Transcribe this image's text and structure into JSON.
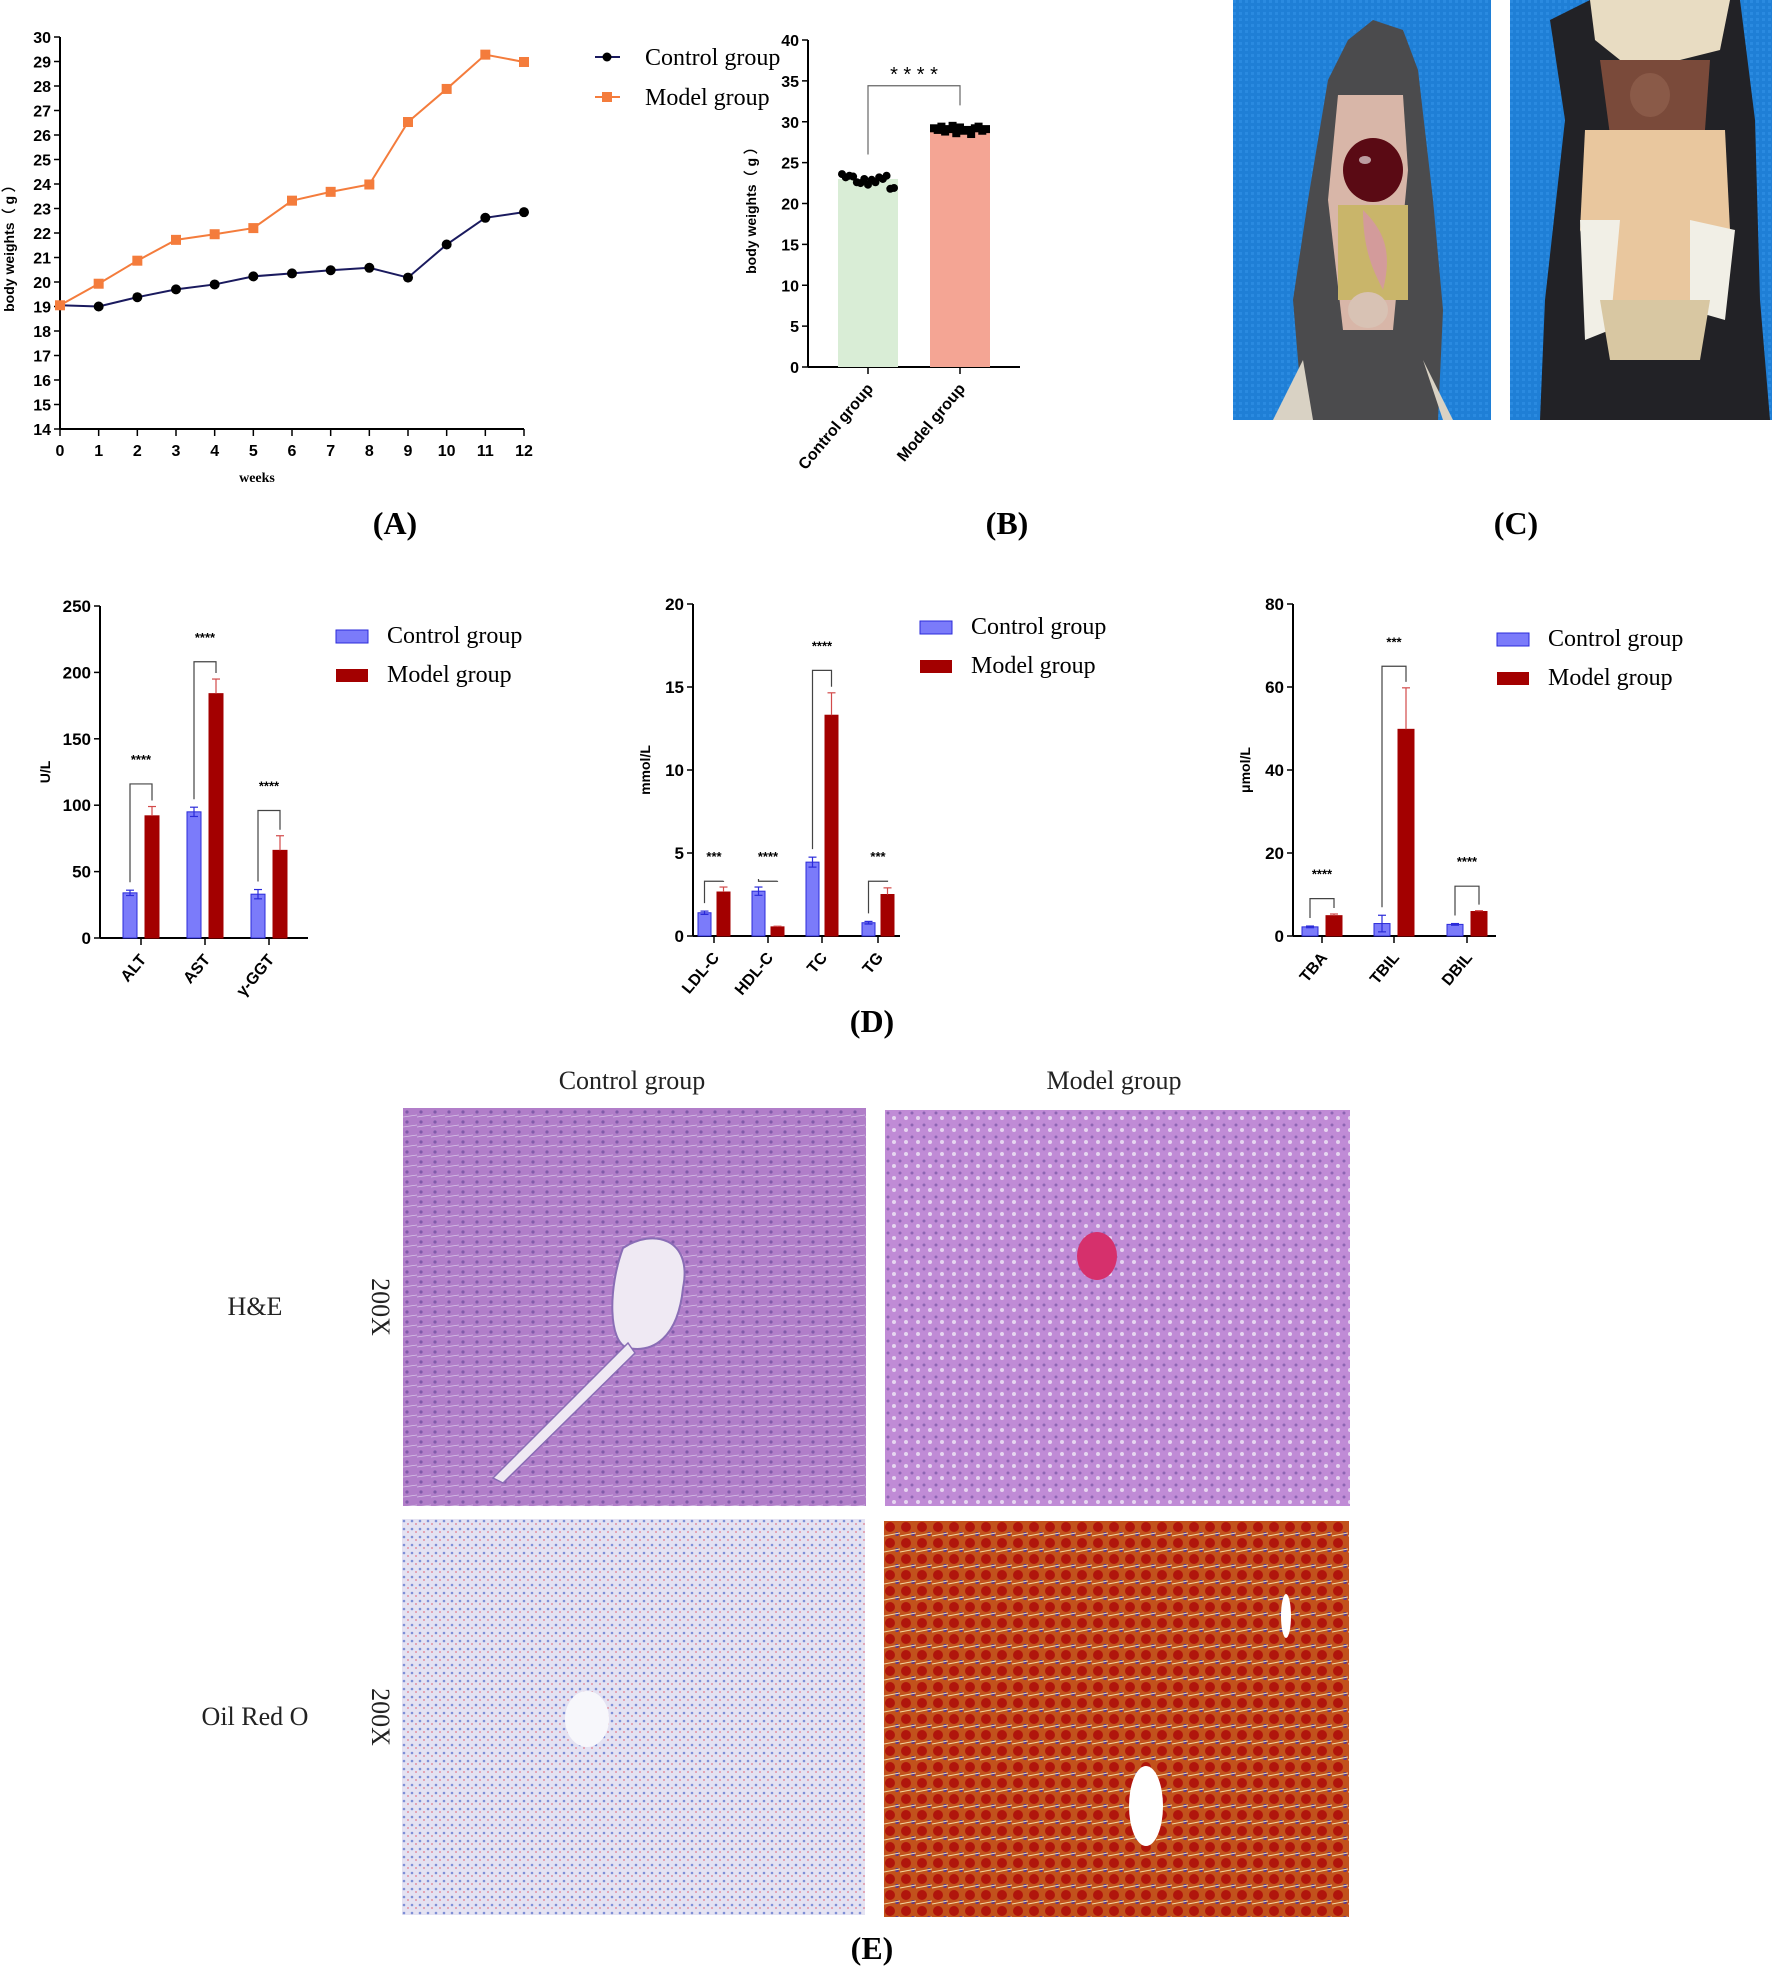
{
  "figure": {
    "panel_labels": {
      "A": "(A)",
      "B": "(B)",
      "C": "(C)",
      "D": "(D)",
      "E": "(E)"
    }
  },
  "legend": {
    "control": "Control group",
    "model": "Model group"
  },
  "colors": {
    "control_line": "#1a1a5e",
    "model_line": "#f47c3c",
    "control_bar_B": "#d9edd6",
    "model_bar_B": "#f4a594",
    "control_bar_D": "#7b7bfa",
    "control_bar_D_edge": "#2b2bd9",
    "model_bar_D": "#a30000"
  },
  "panel_E": {
    "col_headers": [
      "Control group",
      "Model group"
    ],
    "rows": [
      {
        "stain": "H&E",
        "magnification": "200X"
      },
      {
        "stain": "Oil Red O",
        "magnification": "200X"
      }
    ]
  },
  "chart_data": [
    {
      "id": "A",
      "type": "line",
      "title": "",
      "xlabel": "weeks",
      "ylabel": "body weights（  g  ）",
      "x": [
        0,
        1,
        2,
        3,
        4,
        5,
        6,
        7,
        8,
        9,
        10,
        11,
        12
      ],
      "xticks": [
        "0",
        "1",
        "2",
        "3",
        "4",
        "5",
        "6",
        "7",
        "8",
        "9",
        "10",
        "11",
        "12"
      ],
      "yticks": [
        "14",
        "15",
        "16",
        "17",
        "18",
        "19",
        "20",
        "21",
        "22",
        "23",
        "24",
        "25",
        "26",
        "27",
        "28",
        "29",
        "30"
      ],
      "ylim": [
        14,
        30
      ],
      "grid": false,
      "legend_position": "right",
      "series": [
        {
          "name": "Control group",
          "marker": "circle",
          "values": [
            19.05,
            19.0,
            19.38,
            19.7,
            19.9,
            20.23,
            20.35,
            20.48,
            20.58,
            20.18,
            21.53,
            22.62,
            22.85
          ]
        },
        {
          "name": "Model group",
          "marker": "square",
          "values": [
            19.05,
            19.93,
            20.87,
            21.72,
            21.95,
            22.2,
            23.32,
            23.68,
            23.98,
            26.53,
            27.88,
            29.28,
            28.98
          ]
        }
      ]
    },
    {
      "id": "B",
      "type": "bar",
      "title": "",
      "xlabel": "",
      "ylabel": "body weights（  g  ）",
      "categories": [
        "Control group",
        "Model group"
      ],
      "values": [
        23.0,
        29.0
      ],
      "yticks": [
        "0",
        "5",
        "10",
        "15",
        "20",
        "25",
        "30",
        "35",
        "40"
      ],
      "ylim": [
        0,
        40
      ],
      "significance": "****",
      "points": {
        "Control group": [
          23.6,
          23.2,
          23.4,
          23.3,
          22.6,
          22.5,
          23.0,
          22.3,
          22.9,
          22.6,
          23.2,
          23.0,
          23.4,
          21.8,
          21.9
        ],
        "Model group": [
          29.2,
          29.0,
          29.4,
          28.8,
          29.1,
          29.5,
          28.6,
          29.3,
          28.9,
          29.0,
          28.5,
          29.2,
          29.4,
          28.9,
          29.1
        ]
      }
    },
    {
      "id": "D1",
      "type": "bar",
      "title": "",
      "xlabel": "",
      "ylabel": "U/L",
      "categories": [
        "ALT",
        "AST",
        "γ-GGT"
      ],
      "yticks": [
        "0",
        "50",
        "100",
        "150",
        "200",
        "250"
      ],
      "ylim": [
        0,
        250
      ],
      "series": [
        {
          "name": "Control group",
          "values": [
            34,
            95,
            33
          ],
          "errors": [
            2,
            3.5,
            3.5
          ]
        },
        {
          "name": "Model group",
          "values": [
            92,
            184,
            66
          ],
          "errors": [
            7,
            11,
            11
          ]
        }
      ],
      "significance": [
        "****",
        "****",
        "****"
      ]
    },
    {
      "id": "D2",
      "type": "bar",
      "title": "",
      "xlabel": "",
      "ylabel": "mmol/L",
      "categories": [
        "LDL-C",
        "HDL-C",
        "TC",
        "TG"
      ],
      "yticks": [
        "0",
        "5",
        "10",
        "15",
        "20"
      ],
      "ylim": [
        0,
        20
      ],
      "series": [
        {
          "name": "Control group",
          "values": [
            1.4,
            2.7,
            4.45,
            0.8
          ],
          "errors": [
            0.1,
            0.25,
            0.3,
            0.08
          ]
        },
        {
          "name": "Model group",
          "values": [
            2.65,
            0.55,
            13.3,
            2.5
          ],
          "errors": [
            0.3,
            0.04,
            1.35,
            0.4
          ]
        }
      ],
      "significance": [
        "***",
        "****",
        "****",
        "***"
      ]
    },
    {
      "id": "D3",
      "type": "bar",
      "title": "",
      "xlabel": "",
      "ylabel": "μmol/L",
      "categories": [
        "TBA",
        "TBIL",
        "DBIL"
      ],
      "yticks": [
        "0",
        "20",
        "40",
        "60",
        "80"
      ],
      "ylim": [
        0,
        80
      ],
      "series": [
        {
          "name": "Control group",
          "values": [
            2.2,
            3.0,
            2.8
          ],
          "errors": [
            0.2,
            2.0,
            0.2
          ]
        },
        {
          "name": "Model group",
          "values": [
            4.9,
            49.8,
            5.9
          ],
          "errors": [
            0.4,
            10.0,
            0.2
          ]
        }
      ],
      "significance": [
        "****",
        "***",
        "****"
      ]
    }
  ]
}
